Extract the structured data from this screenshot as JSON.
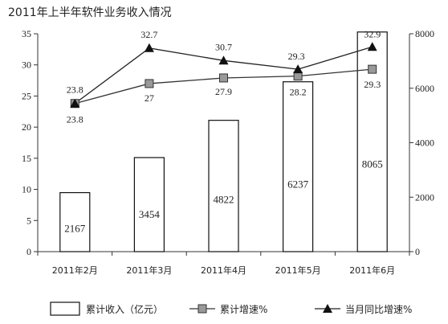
{
  "chart_data": {
    "title": "2011年上半年软件业务收入情况",
    "type": "bar+line",
    "categories": [
      "2011年2月",
      "2011年3月",
      "2011年4月",
      "2011年5月",
      "2011年6月"
    ],
    "left_axis": {
      "ylim": [
        0,
        35
      ],
      "ticks": [
        "0",
        "5",
        "10",
        "15",
        "20",
        "25",
        "30",
        "35"
      ]
    },
    "right_axis": {
      "ylim": [
        0,
        8000
      ],
      "ticks": [
        "0",
        "2000",
        "4000",
        "6000",
        "8000"
      ]
    },
    "series": [
      {
        "name": "累计收入（亿元）",
        "kind": "bar",
        "axis": "right",
        "values": [
          2167,
          3454,
          4822,
          6237,
          8065
        ],
        "labels": [
          "2167",
          "3454",
          "4822",
          "6237",
          "8065"
        ]
      },
      {
        "name": "累计增速%",
        "kind": "line-square",
        "axis": "left",
        "values": [
          23.8,
          27,
          27.9,
          28.2,
          29.3
        ],
        "labels": [
          "23.8",
          "27",
          "27.9",
          "28.2",
          "29.3"
        ]
      },
      {
        "name": "当月同比增速%",
        "kind": "line-triangle",
        "axis": "left",
        "values": [
          23.8,
          32.7,
          30.7,
          29.3,
          32.9
        ],
        "labels": [
          "23.8",
          "32.7",
          "30.7",
          "29.3",
          "32.9"
        ]
      }
    ],
    "legend_placement": "bottom",
    "grid": false
  }
}
